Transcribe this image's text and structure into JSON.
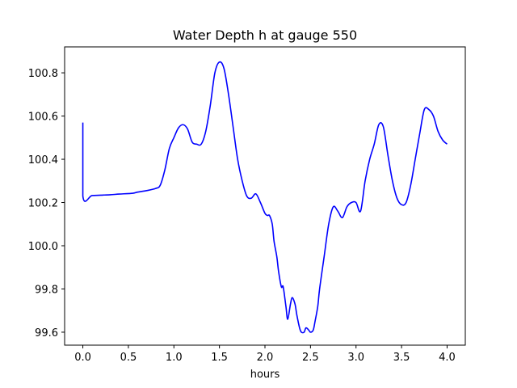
{
  "chart_data": {
    "type": "line",
    "title": "Water Depth h at gauge 550",
    "xlabel": "hours",
    "ylabel": "",
    "xlim": [
      -0.2,
      4.2
    ],
    "ylim": [
      99.54,
      100.92
    ],
    "grid": false,
    "line_color": "#0000ff",
    "x_ticks": [
      0.0,
      0.5,
      1.0,
      1.5,
      2.0,
      2.5,
      3.0,
      3.5,
      4.0
    ],
    "x_tick_labels": [
      "0.0",
      "0.5",
      "1.0",
      "1.5",
      "2.0",
      "2.5",
      "3.0",
      "3.5",
      "4.0"
    ],
    "y_ticks": [
      99.6,
      99.8,
      100.0,
      100.2,
      100.4,
      100.6,
      100.8
    ],
    "y_tick_labels": [
      "99.6",
      "99.8",
      "100.0",
      "100.2",
      "100.4",
      "100.6",
      "100.8"
    ],
    "series": [
      {
        "name": "",
        "x": [
          0.0,
          0.0,
          0.1,
          0.2,
          0.3,
          0.4,
          0.55,
          0.6,
          0.7,
          0.8,
          0.85,
          0.9,
          0.95,
          1.0,
          1.05,
          1.1,
          1.15,
          1.2,
          1.25,
          1.3,
          1.35,
          1.4,
          1.45,
          1.5,
          1.55,
          1.6,
          1.65,
          1.7,
          1.75,
          1.8,
          1.85,
          1.9,
          1.95,
          2.0,
          2.03,
          2.05,
          2.08,
          2.1,
          2.13,
          2.15,
          2.18,
          2.2,
          2.23,
          2.25,
          2.28,
          2.3,
          2.33,
          2.35,
          2.38,
          2.4,
          2.43,
          2.45,
          2.48,
          2.5,
          2.53,
          2.55,
          2.58,
          2.6,
          2.65,
          2.7,
          2.75,
          2.8,
          2.85,
          2.9,
          2.95,
          3.0,
          3.05,
          3.1,
          3.15,
          3.2,
          3.25,
          3.3,
          3.35,
          3.4,
          3.45,
          3.5,
          3.55,
          3.6,
          3.65,
          3.7,
          3.75,
          3.8,
          3.85,
          3.9,
          3.95,
          4.0
        ],
        "y": [
          100.57,
          100.23,
          100.232,
          100.234,
          100.236,
          100.239,
          100.243,
          100.248,
          100.255,
          100.265,
          100.28,
          100.35,
          100.45,
          100.5,
          100.545,
          100.56,
          100.54,
          100.48,
          100.47,
          100.47,
          100.53,
          100.65,
          100.8,
          100.85,
          100.82,
          100.7,
          100.55,
          100.4,
          100.3,
          100.23,
          100.22,
          100.24,
          100.2,
          100.15,
          100.14,
          100.14,
          100.1,
          100.02,
          99.95,
          99.88,
          99.81,
          99.81,
          99.72,
          99.66,
          99.73,
          99.76,
          99.73,
          99.68,
          99.62,
          99.6,
          99.6,
          99.62,
          99.61,
          99.6,
          99.61,
          99.65,
          99.72,
          99.8,
          99.95,
          100.1,
          100.18,
          100.16,
          100.13,
          100.18,
          100.2,
          100.2,
          100.16,
          100.3,
          100.4,
          100.47,
          100.56,
          100.55,
          100.42,
          100.3,
          100.22,
          100.19,
          100.2,
          100.28,
          100.4,
          100.52,
          100.63,
          100.63,
          100.6,
          100.53,
          100.49,
          100.47
        ]
      }
    ]
  }
}
